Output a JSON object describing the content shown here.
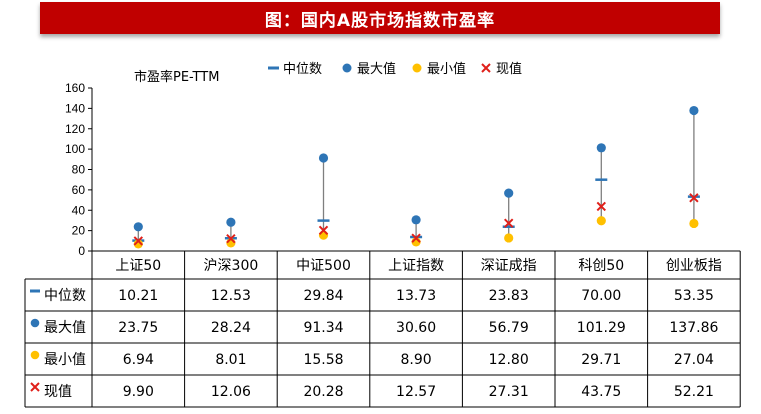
{
  "title": "图：国内A股市场指数市盈率",
  "chart_data": {
    "type": "scatter",
    "ylabel": "市盈率PE-TTM",
    "ylim": [
      0,
      160
    ],
    "yticks": [
      0,
      20,
      40,
      60,
      80,
      100,
      120,
      140,
      160
    ],
    "grid": false,
    "legend_position": "top",
    "categories": [
      "上证50",
      "沪深300",
      "中证500",
      "上证指数",
      "深证成指",
      "科创50",
      "创业板指"
    ],
    "series": [
      {
        "name": "中位数",
        "marker": "dash",
        "color": "#2e75b6",
        "values": [
          10.21,
          12.53,
          29.84,
          13.73,
          23.83,
          70.0,
          53.35
        ]
      },
      {
        "name": "最大值",
        "marker": "circle",
        "color": "#2e75b6",
        "values": [
          23.75,
          28.24,
          91.34,
          30.6,
          56.79,
          101.29,
          137.86
        ]
      },
      {
        "name": "最小值",
        "marker": "circle",
        "color": "#ffc000",
        "values": [
          6.94,
          8.01,
          15.58,
          8.9,
          12.8,
          29.71,
          27.04
        ]
      },
      {
        "name": "现值",
        "marker": "x",
        "color": "#e0201a",
        "values": [
          9.9,
          12.06,
          20.28,
          12.57,
          27.31,
          43.75,
          52.21
        ]
      }
    ],
    "table": {
      "rows": [
        [
          "10.21",
          "12.53",
          "29.84",
          "13.73",
          "23.83",
          "70.00",
          "53.35"
        ],
        [
          "23.75",
          "28.24",
          "91.34",
          "30.60",
          "56.79",
          "101.29",
          "137.86"
        ],
        [
          "6.94",
          "8.01",
          "15.58",
          "8.90",
          "12.80",
          "29.71",
          "27.04"
        ],
        [
          "9.90",
          "12.06",
          "20.28",
          "12.57",
          "27.31",
          "43.75",
          "52.21"
        ]
      ]
    },
    "colors": {
      "range_line": "#7f7f7f",
      "title_bar": "#c00000"
    }
  }
}
